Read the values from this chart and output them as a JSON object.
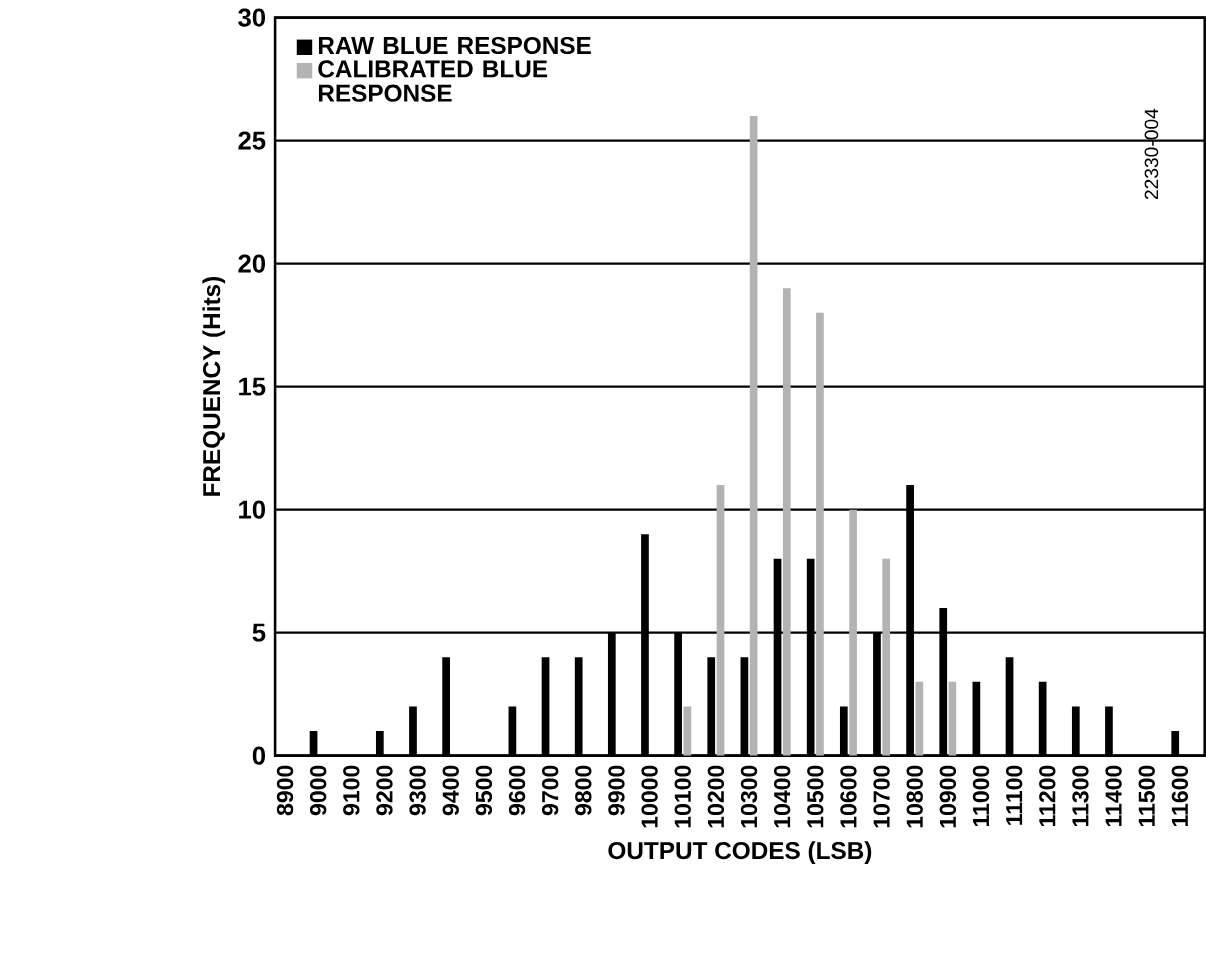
{
  "chart_data": {
    "type": "bar",
    "xlabel": "OUTPUT CODES (LSB)",
    "ylabel": "FREQUENCY (Hits)",
    "categories": [
      "8900",
      "9000",
      "9100",
      "9200",
      "9300",
      "9400",
      "9500",
      "9600",
      "9700",
      "9800",
      "9900",
      "10000",
      "10100",
      "10200",
      "10300",
      "10400",
      "10500",
      "10600",
      "10700",
      "10800",
      "10900",
      "11000",
      "11100",
      "11200",
      "11300",
      "11400",
      "11500",
      "11600"
    ],
    "series": [
      {
        "name": "RAW BLUE RESPONSE",
        "color": "#000000",
        "values": [
          0,
          1,
          0,
          1,
          2,
          4,
          0,
          2,
          4,
          4,
          5,
          9,
          5,
          4,
          4,
          8,
          8,
          2,
          5,
          11,
          6,
          3,
          4,
          3,
          2,
          2,
          0,
          1
        ]
      },
      {
        "name": "CALIBRATED BLUE RESPONSE",
        "color": "#b3b3b3",
        "values": [
          null,
          null,
          null,
          null,
          null,
          null,
          null,
          null,
          null,
          null,
          null,
          null,
          2,
          11,
          26,
          19,
          18,
          10,
          8,
          3,
          3,
          null,
          null,
          null,
          null,
          null,
          null,
          null
        ]
      }
    ],
    "ylim": [
      0,
      30
    ],
    "yticks": [
      0,
      5,
      10,
      15,
      20,
      25,
      30
    ],
    "grid": "y",
    "legend": "top left",
    "annotations": [
      "22330-004"
    ]
  }
}
